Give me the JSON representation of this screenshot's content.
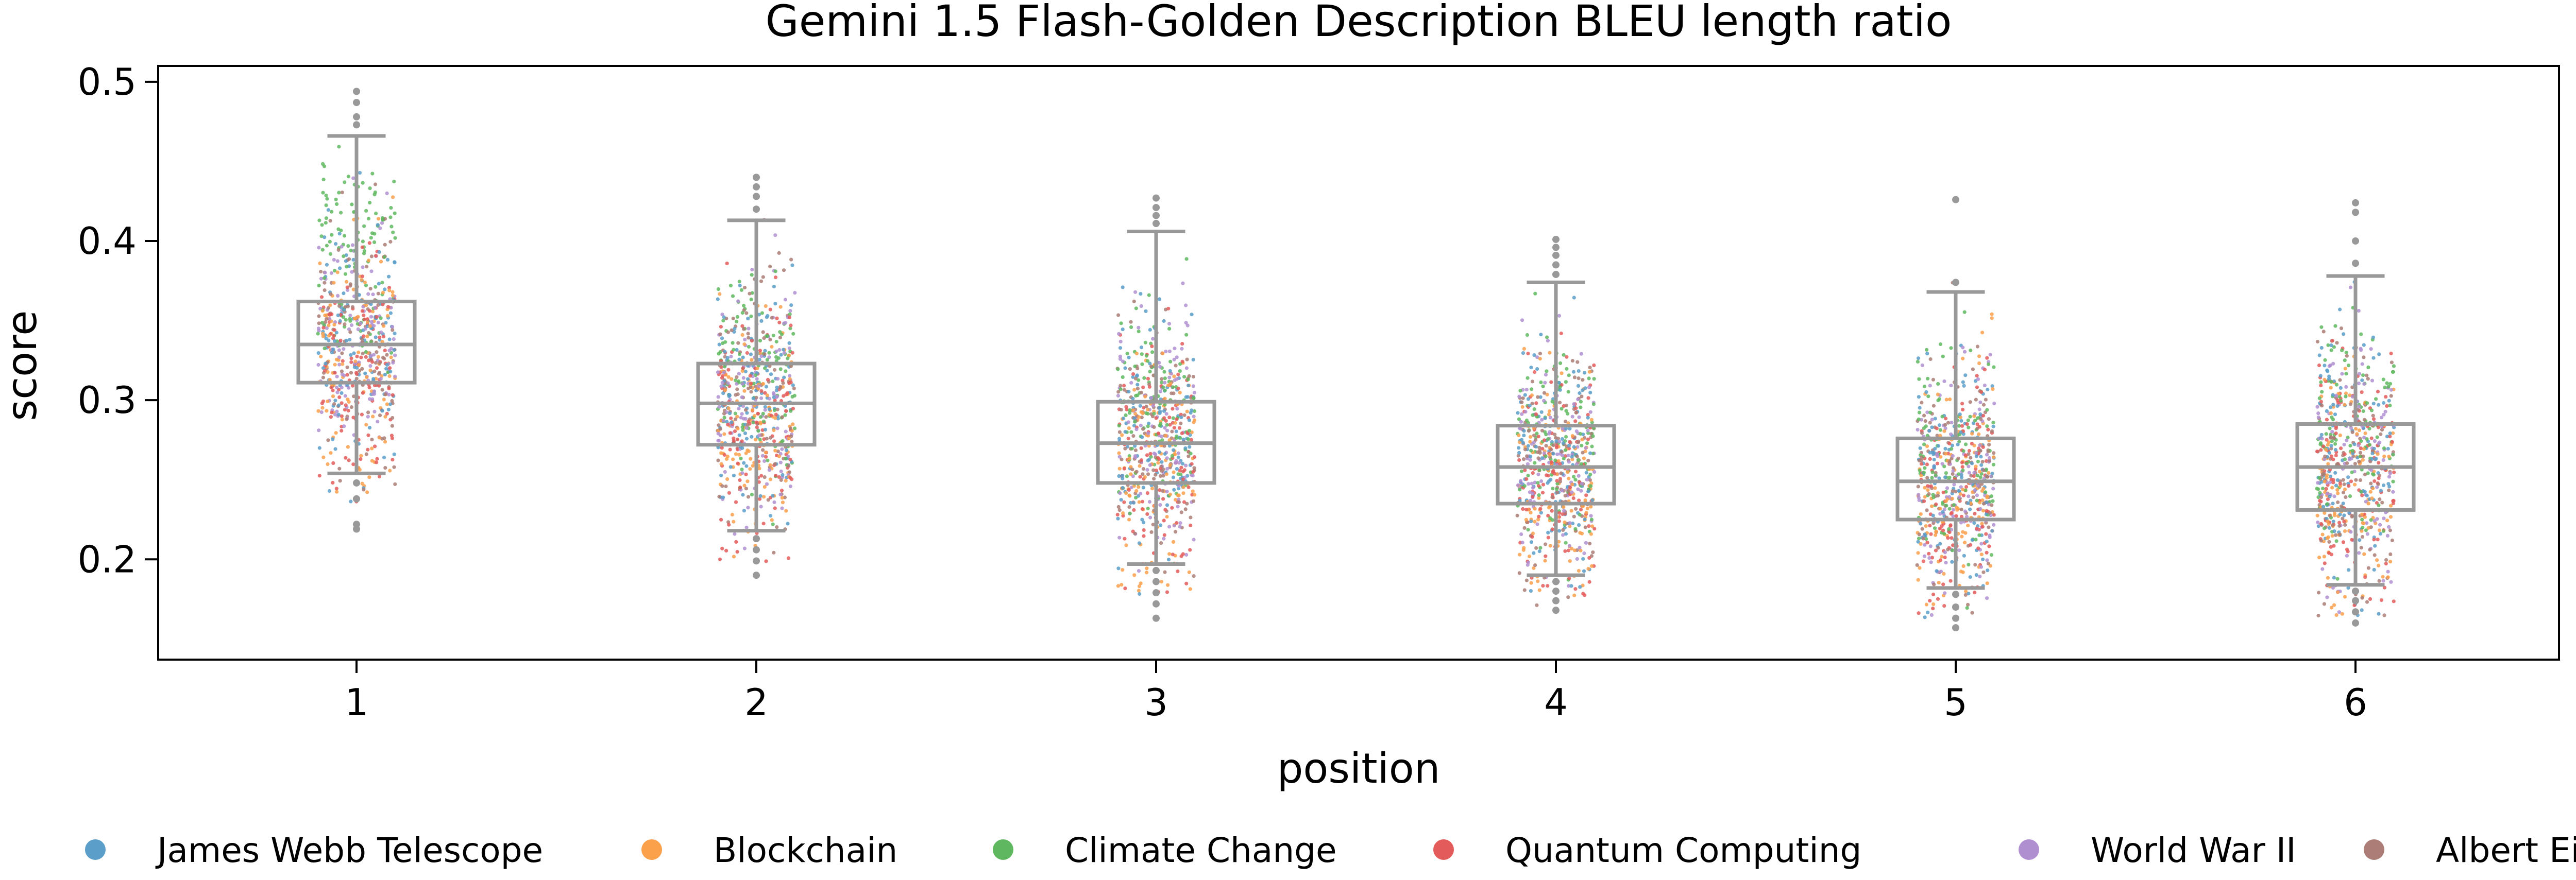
{
  "chart_data": {
    "type": "scatter",
    "subtype": "strip plot with box plot overlay",
    "title": "Gemini 1.5 Flash-Golden Description BLEU length ratio",
    "xlabel": "position",
    "ylabel": "score",
    "categories": [
      "1",
      "2",
      "3",
      "4",
      "5",
      "6"
    ],
    "ylim": [
      0.137,
      0.51
    ],
    "yticks": [
      "0.2",
      "0.3",
      "0.4",
      "0.5"
    ],
    "grid": false,
    "legend_position": "bottom",
    "series": [
      {
        "name": "James Webb Telescope",
        "color": "#5a9ec9"
      },
      {
        "name": "Blockchain",
        "color": "#fba04b"
      },
      {
        "name": "Climate Change",
        "color": "#5fb85f"
      },
      {
        "name": "Quantum Computing",
        "color": "#e45b5b"
      },
      {
        "name": "World War II",
        "color": "#b08fd1"
      },
      {
        "name": "Albert Einstein",
        "color": "#ac7d76"
      }
    ],
    "boxplots": [
      {
        "position": "1",
        "whisker_low": 0.254,
        "q1": 0.311,
        "median": 0.335,
        "q3": 0.362,
        "whisker_high": 0.466,
        "outliers": [
          0.473,
          0.478,
          0.487,
          0.494,
          0.248,
          0.238,
          0.222,
          0.219
        ]
      },
      {
        "position": "2",
        "whisker_low": 0.218,
        "q1": 0.272,
        "median": 0.298,
        "q3": 0.323,
        "whisker_high": 0.413,
        "outliers": [
          0.42,
          0.428,
          0.434,
          0.44,
          0.213,
          0.206,
          0.199,
          0.19
        ]
      },
      {
        "position": "3",
        "whisker_low": 0.197,
        "q1": 0.248,
        "median": 0.273,
        "q3": 0.299,
        "whisker_high": 0.406,
        "outliers": [
          0.411,
          0.416,
          0.421,
          0.427,
          0.193,
          0.186,
          0.179,
          0.172,
          0.163
        ]
      },
      {
        "position": "4",
        "whisker_low": 0.19,
        "q1": 0.235,
        "median": 0.258,
        "q3": 0.284,
        "whisker_high": 0.374,
        "outliers": [
          0.379,
          0.385,
          0.391,
          0.396,
          0.401,
          0.186,
          0.18,
          0.174,
          0.168
        ]
      },
      {
        "position": "5",
        "whisker_low": 0.182,
        "q1": 0.225,
        "median": 0.249,
        "q3": 0.276,
        "whisker_high": 0.368,
        "outliers": [
          0.374,
          0.426,
          0.178,
          0.17,
          0.163,
          0.157
        ]
      },
      {
        "position": "6",
        "whisker_low": 0.184,
        "q1": 0.231,
        "median": 0.258,
        "q3": 0.285,
        "whisker_high": 0.378,
        "outliers": [
          0.386,
          0.4,
          0.418,
          0.424,
          0.18,
          0.174,
          0.167,
          0.16
        ]
      }
    ],
    "points_per_series_per_position": 120,
    "box_color": "#999999"
  }
}
